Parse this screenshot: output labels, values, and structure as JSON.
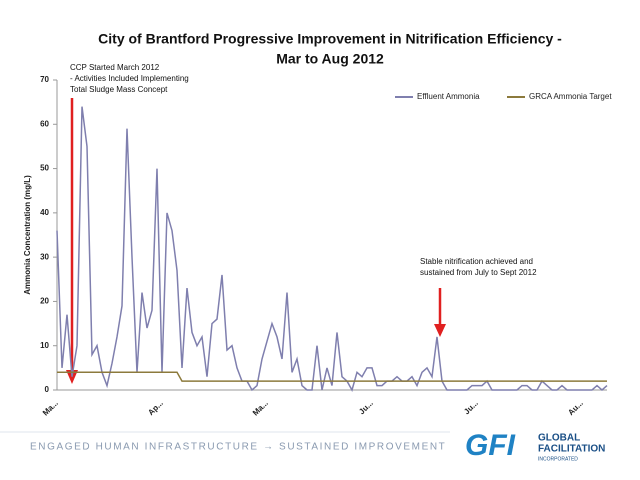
{
  "chart_data": {
    "type": "line",
    "title": [
      "City of Brantford Progressive Improvement in Nitrification Efficiency  -",
      "Mar to Aug 2012"
    ],
    "y_label": "Ammonia Concentration (mg/L)",
    "categories": [
      "Ma...",
      null,
      null,
      null,
      null,
      null,
      null,
      null,
      null,
      null,
      null,
      null,
      null,
      null,
      null,
      null,
      null,
      null,
      null,
      null,
      null,
      "Ap...",
      null,
      null,
      null,
      null,
      null,
      null,
      null,
      null,
      null,
      null,
      null,
      null,
      null,
      null,
      null,
      null,
      null,
      null,
      null,
      null,
      "Ma...",
      null,
      null,
      null,
      null,
      null,
      null,
      null,
      null,
      null,
      null,
      null,
      null,
      null,
      null,
      null,
      null,
      null,
      null,
      null,
      null,
      "Ju...",
      null,
      null,
      null,
      null,
      null,
      null,
      null,
      null,
      null,
      null,
      null,
      null,
      null,
      null,
      null,
      null,
      null,
      null,
      null,
      null,
      "Ju...",
      null,
      null,
      null,
      null,
      null,
      null,
      null,
      null,
      null,
      null,
      null,
      null,
      null,
      null,
      null,
      null,
      null,
      null,
      null,
      null,
      "Au...",
      null,
      null,
      null,
      null,
      null
    ],
    "series": [
      {
        "name": "Effluent Ammonia",
        "color": "#7f7fae",
        "values": [
          36,
          5,
          17,
          3,
          10,
          64,
          55,
          8,
          10,
          4,
          1,
          6,
          12,
          19,
          59,
          30,
          4,
          22,
          14,
          18,
          50,
          4,
          40,
          36,
          27,
          5,
          23,
          13,
          10,
          12,
          3,
          15,
          16,
          26,
          9,
          10,
          5,
          2,
          2,
          0,
          1,
          7,
          11,
          15,
          12,
          7,
          22,
          4,
          7,
          1,
          0,
          0,
          10,
          0,
          5,
          1,
          13,
          3,
          2,
          0,
          4,
          3,
          5,
          5,
          1,
          1,
          2,
          2,
          3,
          2,
          2,
          3,
          1,
          4,
          5,
          3,
          12,
          2,
          0,
          0,
          0,
          0,
          0,
          1,
          1,
          1,
          2,
          0,
          0,
          0,
          0,
          0,
          0,
          1,
          1,
          0,
          0,
          2,
          1,
          0,
          0,
          1,
          0,
          0,
          0,
          0,
          0,
          0,
          1,
          0,
          1
        ]
      },
      {
        "name": "GRCA Ammonia Target",
        "color": "#8c7a3c",
        "values": [
          4,
          4,
          4,
          4,
          4,
          4,
          4,
          4,
          4,
          4,
          4,
          4,
          4,
          4,
          4,
          4,
          4,
          4,
          4,
          4,
          4,
          4,
          4,
          4,
          4,
          2,
          2,
          2,
          2,
          2,
          2,
          2,
          2,
          2,
          2,
          2,
          2,
          2,
          2,
          2,
          2,
          2,
          2,
          2,
          2,
          2,
          2,
          2,
          2,
          2,
          2,
          2,
          2,
          2,
          2,
          2,
          2,
          2,
          2,
          2,
          2,
          2,
          2,
          2,
          2,
          2,
          2,
          2,
          2,
          2,
          2,
          2,
          2,
          2,
          2,
          2,
          2,
          2,
          2,
          2,
          2,
          2,
          2,
          2,
          2,
          2,
          2,
          2,
          2,
          2,
          2,
          2,
          2,
          2,
          2,
          2,
          2,
          2,
          2,
          2,
          2,
          2,
          2,
          2,
          2,
          2,
          2,
          2,
          2,
          2,
          2
        ]
      }
    ],
    "ylim": [
      0,
      70
    ],
    "yticks": [
      0,
      10,
      20,
      30,
      40,
      50,
      60,
      70
    ],
    "legend": "top-right",
    "annotations": [
      [
        "CCP Started  March 2012",
        "- Activities Included Implementing",
        "Total Sludge Mass Concept"
      ],
      [
        "Stable nitrification achieved and",
        "sustained from  July  to Sept 2012"
      ]
    ]
  },
  "footer": {
    "tagline": "ENGAGED HUMAN INFRASTRUCTURE → SUSTAINED IMPROVEMENT",
    "logo": {
      "mark": "GFI",
      "lines": [
        "GLOBAL",
        "FACILITATION",
        "INCORPORATED"
      ]
    }
  }
}
